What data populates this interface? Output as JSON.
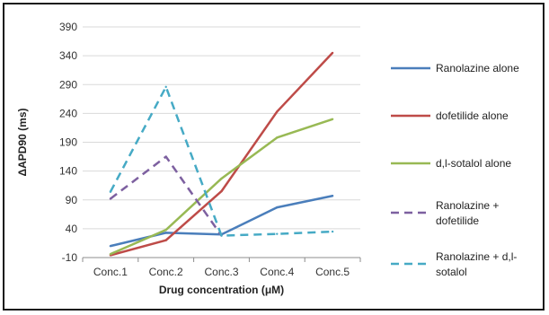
{
  "chart_data": {
    "type": "line",
    "title": "",
    "xlabel": "Drug concentration (μM)",
    "ylabel": "ΔAPD90 (ms)",
    "categories": [
      "Conc.1",
      "Conc.2",
      "Conc.3",
      "Conc.4",
      "Conc.5"
    ],
    "yticks": [
      -10,
      40,
      90,
      140,
      190,
      240,
      290,
      340,
      390
    ],
    "ylim": [
      -10,
      390
    ],
    "grid": "horizontal",
    "legend_position": "right",
    "series": [
      {
        "name": "Ranolazine alone",
        "values": [
          10,
          33,
          30,
          77,
          97
        ],
        "color": "#4a7ebb",
        "dash": "solid"
      },
      {
        "name": "dofetilide alone",
        "values": [
          -6,
          20,
          105,
          243,
          345
        ],
        "color": "#be4b48",
        "dash": "solid"
      },
      {
        "name": "d,l-sotalol alone",
        "values": [
          -4,
          38,
          127,
          198,
          230
        ],
        "color": "#98b954",
        "dash": "solid"
      },
      {
        "name": "Ranolazine +\ndofetilide",
        "values": [
          92,
          165,
          28,
          null,
          null
        ],
        "color": "#7d60a0",
        "dash": "dashed"
      },
      {
        "name": "Ranolazine + d,l-\nsotalol",
        "values": [
          104,
          286,
          28,
          31,
          35
        ],
        "color": "#46aac5",
        "dash": "dashed"
      }
    ]
  }
}
